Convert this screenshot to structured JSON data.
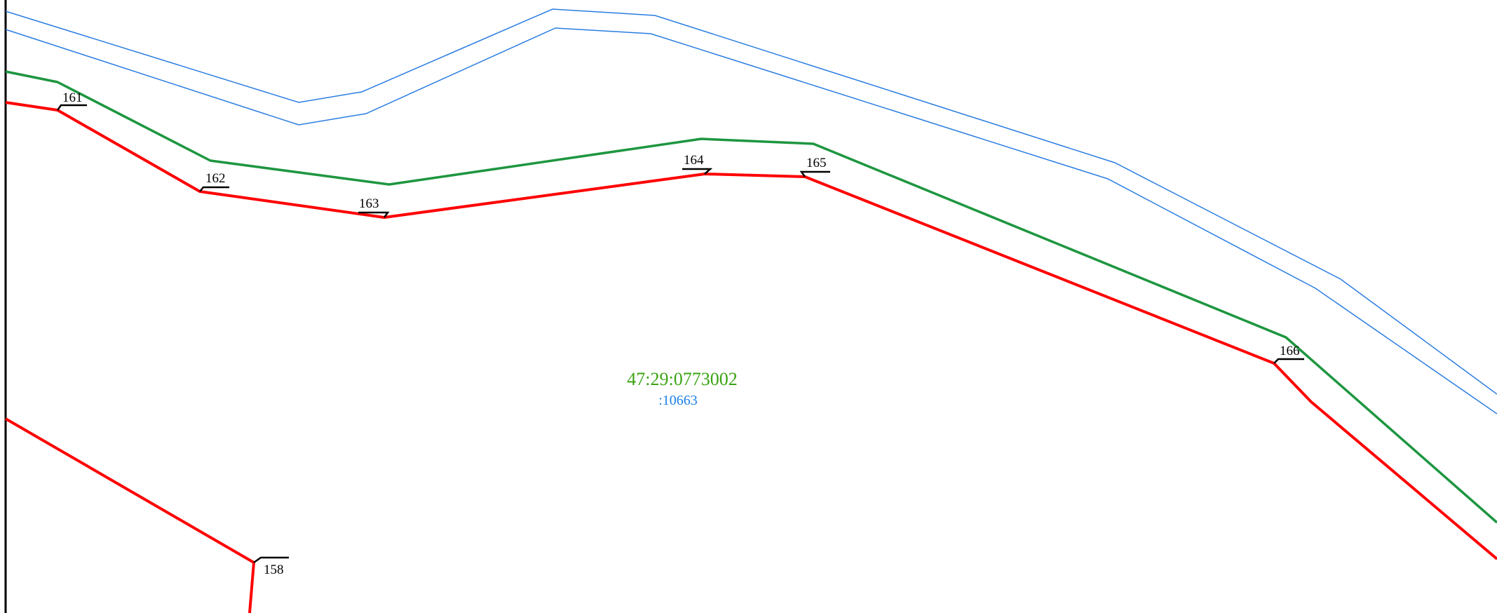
{
  "colors": {
    "parcel_boundary": "#ff0000",
    "adjacent_boundary": "#1e9640",
    "road_lines": "#2a7de1",
    "frame": "#000000",
    "cadastral_number": "#3aa312",
    "parcel_number": "#1a7fe6"
  },
  "labels": {
    "cadastral_number": "47:29:0773002",
    "parcel_number": ":10663"
  },
  "points": [
    {
      "id": "p161",
      "label": "161"
    },
    {
      "id": "p162",
      "label": "162"
    },
    {
      "id": "p163",
      "label": "163"
    },
    {
      "id": "p164",
      "label": "164"
    },
    {
      "id": "p165",
      "label": "165"
    },
    {
      "id": "p166",
      "label": "166"
    },
    {
      "id": "p158",
      "label": "158"
    }
  ]
}
